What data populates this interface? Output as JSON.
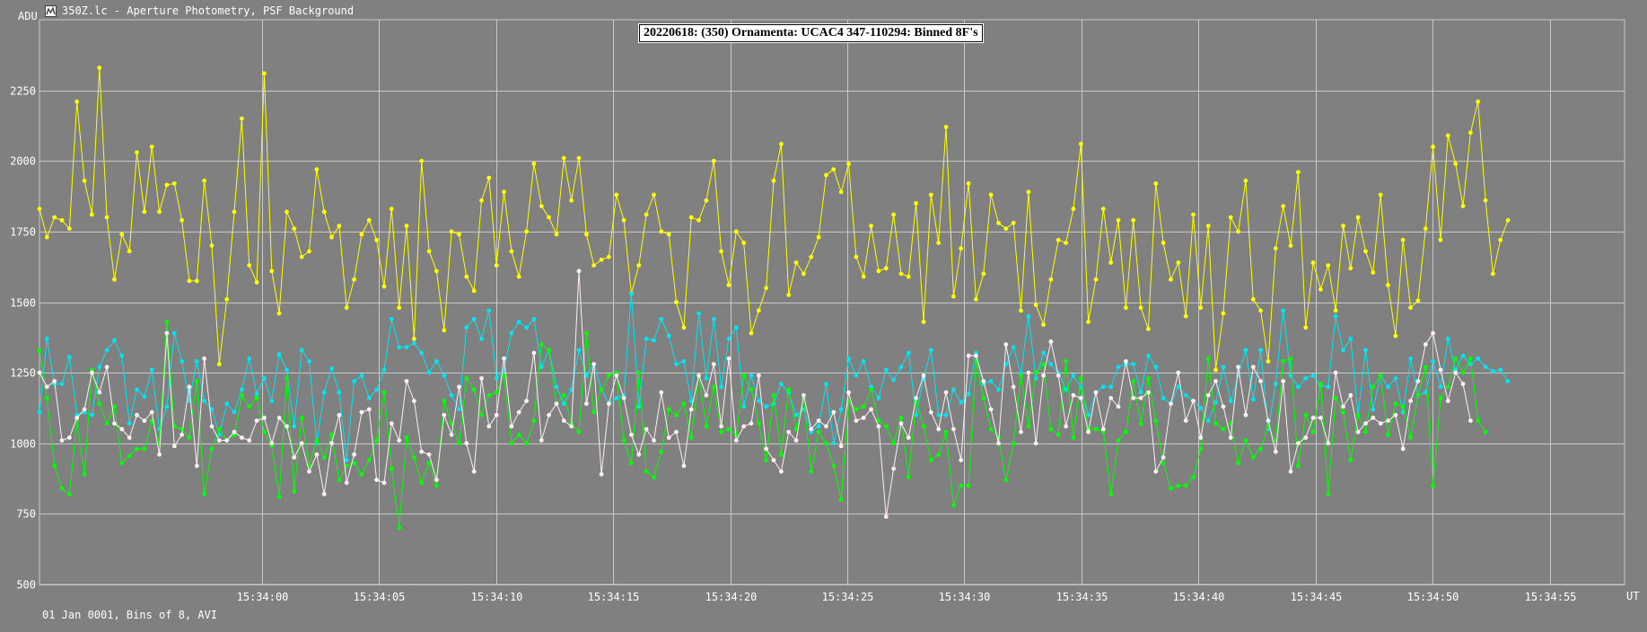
{
  "window": {
    "title": "350Z.lc - Aperture Photometry, PSF Background",
    "icon": "lightcurve-app-icon"
  },
  "footer": "01 Jan 0001, Bins of 8, AVI",
  "colors": {
    "background": "#808080",
    "grid": "#c8c8c8",
    "target": "#ffff00",
    "comp1": "#00e5f0",
    "comp2": "#00ff00",
    "comp3": "#ffeef2"
  },
  "chart_data": {
    "type": "line",
    "title": "20220618: (350) Ornamenta: UCAC4 347-110294: Binned 8F's",
    "ylabel": "ADU",
    "xlabel": "UT",
    "ylim": [
      500,
      2500
    ],
    "xlim_seconds": [
      -9.5,
      58.2
    ],
    "grid": true,
    "y_ticks": [
      500,
      750,
      1000,
      1250,
      1500,
      1750,
      2000,
      2250
    ],
    "x_ticks": [
      "15:34:00",
      "15:34:05",
      "15:34:10",
      "15:34:15",
      "15:34:20",
      "15:34:25",
      "15:34:30",
      "15:34:35",
      "15:34:40",
      "15:34:45",
      "15:34:50",
      "15:34:55"
    ],
    "x_start": "15:33:50.5",
    "x_step_seconds": 0.32,
    "series": [
      {
        "color": "#ffff00",
        "values": [
          1830,
          1730,
          1800,
          1790,
          1760,
          2210,
          1930,
          1810,
          2330,
          1800,
          1580,
          1740,
          1680,
          2030,
          1820,
          2050,
          1820,
          1915,
          1920,
          1790,
          1575,
          1575,
          1930,
          1700,
          1280,
          1510,
          1820,
          2150,
          1630,
          1570,
          2310,
          1610,
          1460,
          1820,
          1760,
          1660,
          1680,
          1970,
          1820,
          1730,
          1770,
          1480,
          1580,
          1740,
          1790,
          1720,
          1555,
          1830,
          1480,
          1770,
          1370,
          2000,
          1680,
          1610,
          1400,
          1750,
          1740,
          1590,
          1540,
          1860,
          1940,
          1630,
          1890,
          1680,
          1590,
          1750,
          1990,
          1840,
          1800,
          1740,
          2010,
          1860,
          2010,
          1740,
          1630,
          1650,
          1660,
          1880,
          1790,
          1530,
          1630,
          1810,
          1880,
          1750,
          1740,
          1500,
          1410,
          1800,
          1790,
          1860,
          2000,
          1680,
          1560,
          1750,
          1710,
          1390,
          1470,
          1550,
          1930,
          2060,
          1525,
          1640,
          1600,
          1660,
          1730,
          1950,
          1970,
          1890,
          1990,
          1660,
          1590,
          1770,
          1610,
          1620,
          1810,
          1600,
          1590,
          1850,
          1430,
          1880,
          1710,
          2120,
          1520,
          1690,
          1920,
          1510,
          1600,
          1880,
          1780,
          1760,
          1780,
          1470,
          1890,
          1490,
          1420,
          1580,
          1720,
          1710,
          1830,
          2060,
          1430,
          1580,
          1830,
          1640,
          1790,
          1480,
          1790,
          1480,
          1405,
          1920,
          1710,
          1580,
          1640,
          1450,
          1810,
          1480,
          1770,
          1260,
          1460,
          1800,
          1750,
          1930,
          1510,
          1470,
          1290,
          1690,
          1840,
          1700,
          1960,
          1410,
          1640,
          1545,
          1630,
          1470,
          1770,
          1620,
          1800,
          1680,
          1605,
          1880,
          1560,
          1380,
          1720,
          1480,
          1505,
          1760,
          2050,
          1720,
          2090,
          1990,
          1840,
          2100,
          2210,
          1860,
          1600,
          1720,
          1790
        ]
      },
      {
        "color": "#00e5f0",
        "values": [
          1110,
          1370,
          1210,
          1210,
          1305,
          1100,
          1110,
          1100,
          1270,
          1330,
          1365,
          1310,
          1070,
          1190,
          1165,
          1260,
          1050,
          1130,
          1390,
          1290,
          1150,
          1290,
          1150,
          1120,
          1030,
          1140,
          1110,
          1190,
          1300,
          1175,
          1230,
          1150,
          1315,
          1260,
          1060,
          1330,
          1290,
          1000,
          1180,
          1265,
          1180,
          940,
          1220,
          1240,
          1160,
          1190,
          1260,
          1440,
          1340,
          1340,
          1355,
          1320,
          1250,
          1290,
          1240,
          1170,
          1120,
          1410,
          1440,
          1370,
          1470,
          1230,
          1260,
          1390,
          1430,
          1410,
          1440,
          1270,
          1330,
          1200,
          1140,
          1190,
          1330,
          1240,
          1280,
          1190,
          1140,
          1160,
          1170,
          1530,
          1130,
          1370,
          1365,
          1440,
          1380,
          1280,
          1290,
          1150,
          1460,
          1230,
          1440,
          1200,
          1370,
          1410,
          1130,
          1240,
          1150,
          1130,
          1140,
          1210,
          1180,
          1100,
          1120,
          1040,
          1060,
          1210,
          1000,
          1120,
          1300,
          1240,
          1290,
          1200,
          1160,
          1260,
          1225,
          1270,
          1320,
          1100,
          1230,
          1330,
          1100,
          1100,
          1190,
          1145,
          1175,
          1320,
          1210,
          1220,
          1190,
          1280,
          1340,
          1245,
          1450,
          1230,
          1320,
          1280,
          1250,
          1190,
          1240,
          1200,
          1100,
          1180,
          1200,
          1200,
          1270,
          1280,
          1280,
          1180,
          1310,
          1270,
          1160,
          1140,
          1200,
          1170,
          1150,
          1125,
          1080,
          1145,
          1270,
          1150,
          1240,
          1330,
          1155,
          1330,
          1050,
          1210,
          1470,
          1240,
          1200,
          1230,
          1240,
          1205,
          1200,
          1450,
          1330,
          1370,
          1100,
          1330,
          1120,
          1240,
          1200,
          1230,
          1110,
          1300,
          1170,
          1180,
          1290,
          1200,
          1370,
          1260,
          1310,
          1280,
          1300,
          1270,
          1255,
          1260,
          1220
        ]
      },
      {
        "color": "#00ff00",
        "values": [
          1330,
          1160,
          920,
          840,
          820,
          1080,
          890,
          1260,
          1140,
          1070,
          1130,
          930,
          955,
          980,
          980,
          1080,
          1000,
          1430,
          1060,
          1050,
          1020,
          1220,
          820,
          980,
          1050,
          1010,
          1030,
          1170,
          1130,
          1160,
          1040,
          990,
          810,
          1230,
          830,
          1090,
          920,
          1010,
          950,
          1030,
          870,
          920,
          930,
          890,
          940,
          1010,
          1180,
          910,
          700,
          1020,
          950,
          860,
          930,
          850,
          1150,
          1070,
          1000,
          1230,
          1190,
          1100,
          1170,
          1180,
          1240,
          1000,
          1030,
          1000,
          1080,
          1350,
          1330,
          1140,
          1170,
          1070,
          1040,
          1390,
          1110,
          1190,
          1240,
          1250,
          1010,
          930,
          1250,
          900,
          880,
          970,
          1120,
          1100,
          1140,
          1020,
          1240,
          1060,
          1200,
          1040,
          1050,
          1030,
          1240,
          1190,
          1070,
          940,
          1170,
          960,
          1190,
          1050,
          1160,
          900,
          1040,
          1000,
          920,
          800,
          1150,
          1120,
          1130,
          1190,
          1080,
          1060,
          1000,
          1090,
          880,
          1150,
          1060,
          940,
          960,
          1040,
          780,
          850,
          850,
          1290,
          1160,
          1050,
          1020,
          870,
          1000,
          1240,
          1060,
          1250,
          1280,
          1050,
          1030,
          1290,
          1020,
          1230,
          1050,
          1050,
          1040,
          820,
          1010,
          1040,
          1220,
          1070,
          1230,
          1080,
          930,
          840,
          850,
          850,
          880,
          980,
          1300,
          1070,
          1050,
          1070,
          930,
          1010,
          950,
          980,
          1060,
          1010,
          1290,
          1300,
          920,
          1100,
          1040,
          1210,
          820,
          1160,
          1110,
          940,
          1100,
          1040,
          1200,
          1240,
          1030,
          1140,
          1130,
          1020,
          1170,
          1270,
          850,
          1160,
          1200,
          1300,
          1250,
          1300,
          1080,
          1040
        ]
      },
      {
        "color": "#ffeef2",
        "values": [
          1250,
          1200,
          1220,
          1010,
          1020,
          1090,
          1120,
          1250,
          1180,
          1270,
          1070,
          1050,
          1020,
          1100,
          1080,
          1110,
          960,
          1390,
          990,
          1030,
          1200,
          920,
          1300,
          1060,
          1010,
          1010,
          1040,
          1020,
          1010,
          1080,
          1090,
          1000,
          1090,
          1060,
          950,
          1000,
          900,
          960,
          820,
          1000,
          1100,
          860,
          960,
          1110,
          1120,
          870,
          860,
          1070,
          1010,
          1220,
          1150,
          970,
          960,
          870,
          1100,
          1030,
          1200,
          1000,
          900,
          1230,
          1060,
          1100,
          1300,
          1060,
          1110,
          1150,
          1320,
          1010,
          1100,
          1140,
          1080,
          1060,
          1610,
          1140,
          1280,
          890,
          1140,
          1240,
          1160,
          1030,
          960,
          1050,
          1010,
          1180,
          1020,
          1040,
          920,
          1120,
          1240,
          1170,
          1280,
          1060,
          1300,
          1010,
          1060,
          1070,
          1240,
          980,
          940,
          900,
          1040,
          1010,
          1170,
          1050,
          1080,
          1060,
          1110,
          990,
          1180,
          1080,
          1090,
          1120,
          1060,
          740,
          910,
          1070,
          1020,
          1160,
          1240,
          1110,
          1050,
          1180,
          1050,
          940,
          1310,
          1310,
          1220,
          1120,
          1000,
          1350,
          1200,
          1040,
          1250,
          1000,
          1240,
          1360,
          1240,
          1060,
          1170,
          1160,
          1040,
          1180,
          1050,
          1160,
          1130,
          1290,
          1160,
          1160,
          1180,
          900,
          950,
          1140,
          1250,
          1080,
          1150,
          1020,
          1170,
          1220,
          1130,
          1020,
          1270,
          1100,
          1270,
          1220,
          1080,
          970,
          1220,
          900,
          1000,
          1020,
          1090,
          1090,
          1000,
          1250,
          1130,
          1170,
          1040,
          1070,
          1090,
          1070,
          1080,
          1100,
          980,
          1150,
          1220,
          1350,
          1390,
          1260,
          1150,
          1250,
          1210,
          1080
        ]
      }
    ]
  }
}
